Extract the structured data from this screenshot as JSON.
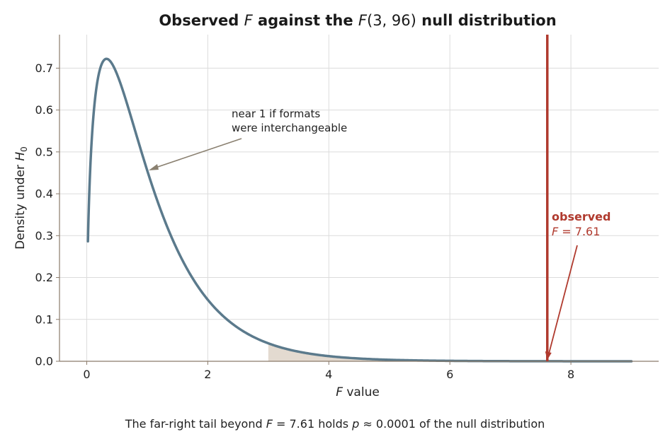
{
  "chart_data": {
    "type": "line",
    "title": {
      "prefix": "Observed ",
      "var": "F",
      "middle": " against the ",
      "dist": "F",
      "args": "(3, 96)",
      "suffix": " null distribution"
    },
    "xlabel": {
      "var": "F",
      "rest": " value"
    },
    "ylabel": {
      "text": "Density under ",
      "var": "H",
      "sub": "0"
    },
    "xlim": [
      -0.45,
      9.45
    ],
    "ylim": [
      0,
      0.78
    ],
    "xticks": [
      0,
      2,
      4,
      6,
      8
    ],
    "yticks": [
      0.0,
      0.1,
      0.2,
      0.3,
      0.4,
      0.5,
      0.6,
      0.7
    ],
    "grid": true,
    "series": [
      {
        "color": "#5b7a8c",
        "distribution": {
          "df1": 3,
          "df2": 96
        },
        "x_range": [
          0.02,
          9.0
        ]
      }
    ],
    "shaded_tail": {
      "from": 3.0,
      "to": 9.0,
      "color": "#e3dad0"
    },
    "observed": {
      "x": 7.61,
      "color": "#b03a2e",
      "label_bold": "observed",
      "label_var": "F",
      "label_rest": " = 7.61"
    },
    "annotation": {
      "lines": [
        "near 1 if formats",
        "were interchangeable"
      ],
      "color": "#8a8070"
    },
    "caption": {
      "a": "The far-right tail beyond ",
      "var1": "F",
      "b": " = 7.61 holds ",
      "var2": "p",
      "c": " ≈ 0.0001 of the null distribution"
    }
  }
}
